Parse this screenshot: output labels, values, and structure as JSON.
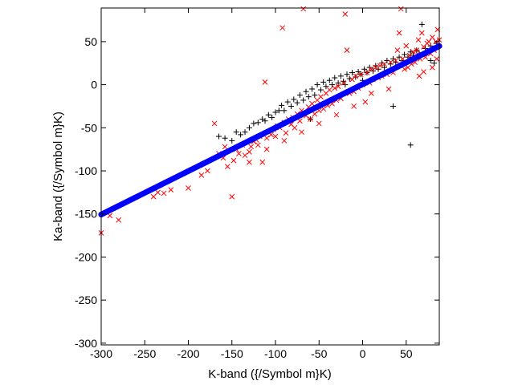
{
  "chart_data": {
    "type": "scatter",
    "title": "",
    "xlabel": "K-band ({/Symbol m}K)",
    "ylabel": "Ka-band ({/Symbol m}K)",
    "xlim": [
      -300,
      88
    ],
    "ylim": [
      -302,
      89
    ],
    "xticks": [
      -300,
      -250,
      -200,
      -150,
      -100,
      -50,
      0,
      50
    ],
    "yticks": [
      -300,
      -250,
      -200,
      -150,
      -100,
      -50,
      0,
      50
    ],
    "grid": false,
    "legend": "none",
    "series": [
      {
        "marker": "plus",
        "color": "#000000",
        "points": [
          [
            -165,
            -60
          ],
          [
            -158,
            -62
          ],
          [
            -150,
            -65
          ],
          [
            -145,
            -55
          ],
          [
            -140,
            -58
          ],
          [
            -135,
            -55
          ],
          [
            -130,
            -50
          ],
          [
            -125,
            -45
          ],
          [
            -120,
            -44
          ],
          [
            -115,
            -40
          ],
          [
            -112,
            -42
          ],
          [
            -108,
            -35
          ],
          [
            -104,
            -38
          ],
          [
            -100,
            -32
          ],
          [
            -96,
            -30
          ],
          [
            -93,
            -24
          ],
          [
            -90,
            -30
          ],
          [
            -86,
            -20
          ],
          [
            -82,
            -25
          ],
          [
            -79,
            -17
          ],
          [
            -75,
            -21
          ],
          [
            -72,
            -12
          ],
          [
            -68,
            -18
          ],
          [
            -65,
            -8
          ],
          [
            -62,
            -14
          ],
          [
            -58,
            -5
          ],
          [
            -55,
            -12
          ],
          [
            -52,
            0
          ],
          [
            -48,
            -6
          ],
          [
            -45,
            3
          ],
          [
            -42,
            -2
          ],
          [
            -38,
            5
          ],
          [
            -35,
            0
          ],
          [
            -32,
            8
          ],
          [
            -28,
            2
          ],
          [
            -25,
            10
          ],
          [
            -22,
            4
          ],
          [
            -18,
            12
          ],
          [
            -15,
            7
          ],
          [
            -12,
            14
          ],
          [
            -8,
            9
          ],
          [
            -5,
            15
          ],
          [
            -2,
            12
          ],
          [
            2,
            18
          ],
          [
            5,
            14
          ],
          [
            8,
            20
          ],
          [
            12,
            16
          ],
          [
            15,
            22
          ],
          [
            18,
            18
          ],
          [
            22,
            25
          ],
          [
            25,
            20
          ],
          [
            28,
            28
          ],
          [
            32,
            24
          ],
          [
            35,
            30
          ],
          [
            38,
            26
          ],
          [
            42,
            32
          ],
          [
            45,
            28
          ],
          [
            48,
            35
          ],
          [
            52,
            32
          ],
          [
            55,
            38
          ],
          [
            58,
            34
          ],
          [
            62,
            40
          ],
          [
            65,
            36
          ],
          [
            68,
            70
          ],
          [
            72,
            42
          ],
          [
            75,
            38
          ],
          [
            78,
            45
          ],
          [
            82,
            42
          ],
          [
            85,
            48
          ],
          [
            88,
            44
          ],
          [
            35,
            -25
          ],
          [
            55,
            -70
          ],
          [
            78,
            28
          ],
          [
            82,
            25
          ],
          [
            -60,
            -40
          ],
          [
            -40,
            -20
          ],
          [
            -20,
            0
          ],
          [
            0,
            5
          ]
        ]
      },
      {
        "marker": "x",
        "color": "#ff0000",
        "points": [
          [
            -300,
            -172
          ],
          [
            -290,
            -152
          ],
          [
            -280,
            -157
          ],
          [
            -240,
            -130
          ],
          [
            -235,
            -125
          ],
          [
            -228,
            -126
          ],
          [
            -220,
            -122
          ],
          [
            -200,
            -120
          ],
          [
            -185,
            -105
          ],
          [
            -178,
            -100
          ],
          [
            -170,
            -45
          ],
          [
            -165,
            -80
          ],
          [
            -160,
            -85
          ],
          [
            -158,
            -72
          ],
          [
            -155,
            -95
          ],
          [
            -150,
            -130
          ],
          [
            -148,
            -88
          ],
          [
            -145,
            -75
          ],
          [
            -142,
            -80
          ],
          [
            -138,
            -70
          ],
          [
            -135,
            -82
          ],
          [
            -130,
            -78
          ],
          [
            -128,
            -72
          ],
          [
            -125,
            -66
          ],
          [
            -122,
            -64
          ],
          [
            -120,
            -70
          ],
          [
            -118,
            -60
          ],
          [
            -115,
            -90
          ],
          [
            -112,
            3
          ],
          [
            -110,
            -62
          ],
          [
            -108,
            -55
          ],
          [
            -105,
            -58
          ],
          [
            -102,
            -52
          ],
          [
            -100,
            -60
          ],
          [
            -98,
            -48
          ],
          [
            -95,
            -50
          ],
          [
            -92,
            66
          ],
          [
            -90,
            -44
          ],
          [
            -88,
            -56
          ],
          [
            -85,
            -40
          ],
          [
            -82,
            -46
          ],
          [
            -80,
            -38
          ],
          [
            -78,
            -50
          ],
          [
            -75,
            -34
          ],
          [
            -72,
            -42
          ],
          [
            -70,
            -30
          ],
          [
            -68,
            88
          ],
          [
            -65,
            -36
          ],
          [
            -62,
            -26
          ],
          [
            -60,
            -40
          ],
          [
            -58,
            -22
          ],
          [
            -55,
            -34
          ],
          [
            -52,
            -18
          ],
          [
            -50,
            -30
          ],
          [
            -48,
            -14
          ],
          [
            -45,
            -28
          ],
          [
            -42,
            -10
          ],
          [
            -40,
            -24
          ],
          [
            -38,
            -6
          ],
          [
            -35,
            -22
          ],
          [
            -32,
            -4
          ],
          [
            -30,
            -18
          ],
          [
            -28,
            -2
          ],
          [
            -25,
            -16
          ],
          [
            -22,
            2
          ],
          [
            -20,
            82
          ],
          [
            -18,
            40
          ],
          [
            -15,
            -10
          ],
          [
            -12,
            6
          ],
          [
            -10,
            -8
          ],
          [
            -8,
            10
          ],
          [
            -5,
            -4
          ],
          [
            -2,
            12
          ],
          [
            0,
            0
          ],
          [
            3,
            -20
          ],
          [
            5,
            14
          ],
          [
            8,
            2
          ],
          [
            10,
            18
          ],
          [
            12,
            6
          ],
          [
            15,
            20
          ],
          [
            18,
            8
          ],
          [
            20,
            22
          ],
          [
            22,
            10
          ],
          [
            25,
            24
          ],
          [
            28,
            12
          ],
          [
            30,
            -5
          ],
          [
            32,
            26
          ],
          [
            35,
            14
          ],
          [
            38,
            28
          ],
          [
            40,
            40
          ],
          [
            42,
            60
          ],
          [
            44,
            88
          ],
          [
            46,
            30
          ],
          [
            48,
            18
          ],
          [
            50,
            45
          ],
          [
            52,
            20
          ],
          [
            54,
            34
          ],
          [
            56,
            24
          ],
          [
            58,
            38
          ],
          [
            60,
            26
          ],
          [
            62,
            40
          ],
          [
            64,
            52
          ],
          [
            66,
            30
          ],
          [
            68,
            60
          ],
          [
            70,
            44
          ],
          [
            72,
            32
          ],
          [
            74,
            48
          ],
          [
            76,
            50
          ],
          [
            78,
            36
          ],
          [
            80,
            55
          ],
          [
            82,
            40
          ],
          [
            84,
            50
          ],
          [
            86,
            64
          ],
          [
            88,
            52
          ],
          [
            65,
            10
          ],
          [
            70,
            15
          ],
          [
            80,
            20
          ],
          [
            85,
            30
          ],
          [
            -10,
            -25
          ],
          [
            -30,
            -35
          ],
          [
            -50,
            -45
          ],
          [
            -70,
            -55
          ],
          [
            -90,
            -65
          ],
          [
            -110,
            -75
          ],
          [
            -130,
            -90
          ],
          [
            10,
            -10
          ]
        ]
      }
    ],
    "fit_line": {
      "color": "#0000ff",
      "x_start": -300,
      "x_end": 88,
      "slope": 0.504,
      "intercept": 0.5
    }
  }
}
